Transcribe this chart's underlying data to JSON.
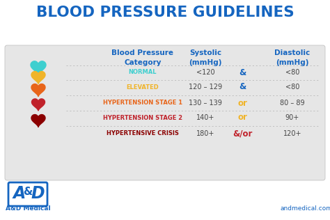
{
  "title": "BLOOD PRESSURE GUIDELINES",
  "title_color": "#1565C0",
  "outer_bg": "#ffffff",
  "table_bg": "#e6e6e6",
  "header_color": "#1565C0",
  "categories": [
    "NORMAL",
    "ELEVATED",
    "HYPERTENSION STAGE 1",
    "HYPERTENSION STAGE 2",
    "HYPERTENSIVE CRISIS"
  ],
  "category_colors": [
    "#3ECFCF",
    "#F0B429",
    "#E8651A",
    "#C0222B",
    "#8B0000"
  ],
  "systolic": [
    "<120",
    "120 – 129",
    "130 – 139",
    "140+",
    "180+"
  ],
  "connectors": [
    "&",
    "&",
    "or",
    "or",
    "&/or"
  ],
  "diastolic": [
    "<80",
    "<80",
    "80 – 89",
    "90+",
    "120+"
  ],
  "connector_colors": [
    "#1565C0",
    "#1565C0",
    "#F0B429",
    "#F0B429",
    "#C0222B"
  ],
  "heart_colors": [
    "#3ECFCF",
    "#F0B429",
    "#E8651A",
    "#C0222B",
    "#8B0000"
  ],
  "logo_sub": "A&D Medical",
  "footer_url": "andmedical.com"
}
